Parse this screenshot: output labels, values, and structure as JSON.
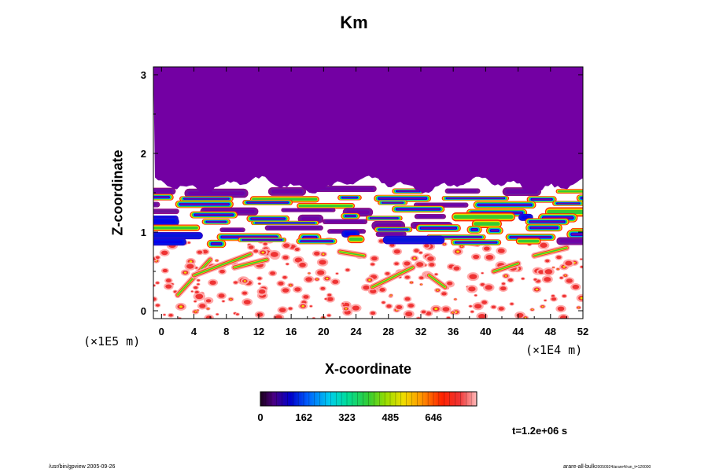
{
  "chart_data": {
    "type": "heatmap",
    "title": "Km",
    "xlabel": "X-coordinate",
    "ylabel": "Z-coordinate",
    "x_unit": "(×1E4 m)",
    "y_unit": "(×1E5 m)",
    "xlim": [
      -1,
      52
    ],
    "ylim": [
      -0.1,
      3.1
    ],
    "x_ticks": [
      "0",
      "4",
      "8",
      "12",
      "16",
      "20",
      "24",
      "28",
      "32",
      "36",
      "40",
      "44",
      "48",
      "52"
    ],
    "y_ticks": [
      "0",
      "1",
      "2",
      "3"
    ],
    "colorbar": {
      "range": [
        0,
        807
      ],
      "ticks": [
        "0",
        "162",
        "323",
        "485",
        "646"
      ]
    },
    "upper_region": {
      "z_from": 1.6,
      "value": "constant (purple)"
    },
    "time": "t=1.2e+06 s"
  },
  "footer": {
    "left": "/usr/bin/gpview 2005-09-26",
    "right_main": "arare-all-bulk",
    "right_sub": "20050924/arare4/run_t=120000"
  }
}
